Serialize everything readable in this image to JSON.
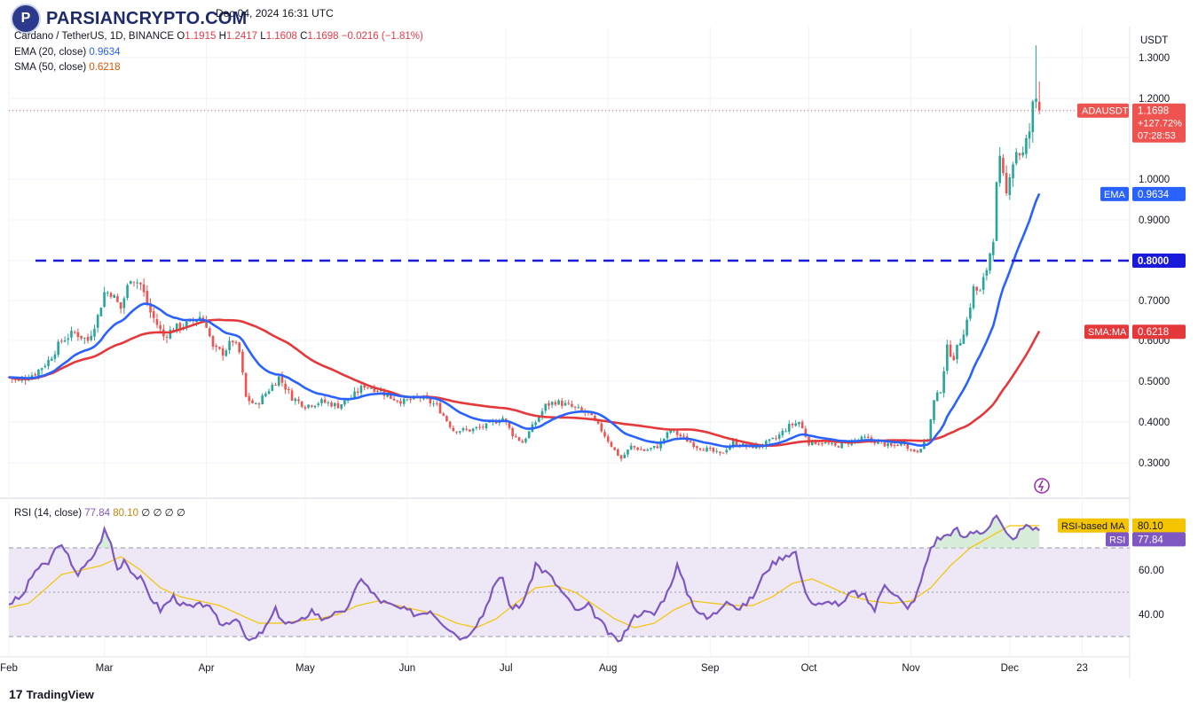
{
  "brand": {
    "logo_text": "PARSIANCRYPTO.COM",
    "logo_mark": "P",
    "footer_brand": "TradingView",
    "footer_mark": "17"
  },
  "header": {
    "published_line": "Dec 04, 2024 16:31 UTC",
    "symbol_line": "Cardano / TetherUS, 1D, BINANCE",
    "ohlc": {
      "o_label": "O",
      "o": "1.1915",
      "h_label": "H",
      "h": "1.2417",
      "l_label": "L",
      "l": "1.1608",
      "c_label": "C",
      "c": "1.1698",
      "change": "−0.0216 (−1.81%)"
    },
    "ema_label": "EMA (20, close)",
    "ema_value": "0.9634",
    "sma_label": "SMA (50, close)",
    "sma_value": "0.6218",
    "rsi_label": "RSI (14, close)",
    "rsi_value": "77.84",
    "rsi_ma_value": "80.10",
    "rsi_extra": "∅ ∅ ∅ ∅"
  },
  "colors": {
    "up": "#26a69a",
    "down": "#ef5350",
    "ema": "#2962ff",
    "sma": "#e5383b",
    "support": "#1a1adb",
    "rsi": "#7e57c2",
    "rsi_ma": "#f5c400",
    "rsi_band": "#ede7f6"
  },
  "chart_data": [
    {
      "type": "candlestick",
      "title": "Cardano / TetherUS, 1D, BINANCE",
      "currency": "USDT",
      "ylim": [
        0.22,
        1.35
      ],
      "y_ticks": [
        "0.3000",
        "0.4000",
        "0.5000",
        "0.6000",
        "0.7000",
        "0.8000",
        "0.9000",
        "1.0000",
        "1.2000",
        "1.3000"
      ],
      "x_ticks": [
        "Feb",
        "Mar",
        "Apr",
        "May",
        "Jun",
        "Jul",
        "Aug",
        "Sep",
        "Oct",
        "Nov",
        "Dec",
        "23"
      ],
      "x_tick_days": [
        0,
        29,
        60,
        90,
        121,
        151,
        182,
        213,
        243,
        274,
        304,
        326
      ],
      "date_range": [
        "2024-02-01",
        "2024-12-04"
      ],
      "price_anchors": [
        [
          0,
          0.51
        ],
        [
          3,
          0.5
        ],
        [
          8,
          0.52
        ],
        [
          12,
          0.55
        ],
        [
          16,
          0.6
        ],
        [
          20,
          0.62
        ],
        [
          24,
          0.6
        ],
        [
          27,
          0.66
        ],
        [
          29,
          0.72
        ],
        [
          31,
          0.72
        ],
        [
          34,
          0.68
        ],
        [
          37,
          0.76
        ],
        [
          40,
          0.74
        ],
        [
          43,
          0.67
        ],
        [
          47,
          0.61
        ],
        [
          50,
          0.63
        ],
        [
          54,
          0.64
        ],
        [
          58,
          0.66
        ],
        [
          60,
          0.64
        ],
        [
          62,
          0.58
        ],
        [
          65,
          0.57
        ],
        [
          68,
          0.6
        ],
        [
          70,
          0.57
        ],
        [
          72,
          0.46
        ],
        [
          75,
          0.44
        ],
        [
          78,
          0.47
        ],
        [
          82,
          0.51
        ],
        [
          86,
          0.46
        ],
        [
          90,
          0.44
        ],
        [
          95,
          0.45
        ],
        [
          100,
          0.44
        ],
        [
          104,
          0.46
        ],
        [
          108,
          0.49
        ],
        [
          112,
          0.48
        ],
        [
          116,
          0.46
        ],
        [
          120,
          0.45
        ],
        [
          125,
          0.46
        ],
        [
          130,
          0.44
        ],
        [
          135,
          0.38
        ],
        [
          140,
          0.38
        ],
        [
          145,
          0.39
        ],
        [
          150,
          0.41
        ],
        [
          153,
          0.37
        ],
        [
          156,
          0.35
        ],
        [
          160,
          0.4
        ],
        [
          163,
          0.44
        ],
        [
          166,
          0.45
        ],
        [
          170,
          0.44
        ],
        [
          173,
          0.43
        ],
        [
          176,
          0.42
        ],
        [
          180,
          0.38
        ],
        [
          184,
          0.33
        ],
        [
          186,
          0.31
        ],
        [
          189,
          0.34
        ],
        [
          193,
          0.33
        ],
        [
          197,
          0.34
        ],
        [
          201,
          0.38
        ],
        [
          205,
          0.36
        ],
        [
          209,
          0.34
        ],
        [
          213,
          0.33
        ],
        [
          216,
          0.32
        ],
        [
          220,
          0.35
        ],
        [
          224,
          0.34
        ],
        [
          228,
          0.34
        ],
        [
          233,
          0.36
        ],
        [
          237,
          0.39
        ],
        [
          240,
          0.4
        ],
        [
          243,
          0.35
        ],
        [
          247,
          0.35
        ],
        [
          251,
          0.34
        ],
        [
          255,
          0.35
        ],
        [
          260,
          0.36
        ],
        [
          264,
          0.35
        ],
        [
          268,
          0.34
        ],
        [
          272,
          0.35
        ],
        [
          274,
          0.33
        ],
        [
          276,
          0.33
        ],
        [
          279,
          0.36
        ],
        [
          281,
          0.45
        ],
        [
          283,
          0.48
        ],
        [
          285,
          0.58
        ],
        [
          287,
          0.56
        ],
        [
          289,
          0.6
        ],
        [
          291,
          0.65
        ],
        [
          293,
          0.73
        ],
        [
          295,
          0.72
        ],
        [
          297,
          0.78
        ],
        [
          299,
          0.86
        ],
        [
          300,
          0.98
        ],
        [
          301,
          1.04
        ],
        [
          303,
          0.96
        ],
        [
          304,
          1.02
        ],
        [
          306,
          1.07
        ],
        [
          308,
          1.06
        ],
        [
          310,
          1.12
        ],
        [
          311,
          1.18
        ],
        [
          312,
          1.2
        ],
        [
          313,
          1.17
        ]
      ],
      "key_prices": {
        "last": 1.1698,
        "high": 1.2417,
        "low": 1.1608,
        "ema20": 0.9634,
        "sma50": 0.6218,
        "support": 0.8
      },
      "support_level": 0.8,
      "labels": {
        "support": "0.8000",
        "ema_tag": "EMA",
        "ema": "0.9634",
        "sma_tag": "SMA:MA",
        "sma": "0.6218",
        "ticker": "ADAUSDT",
        "last": "1.1698",
        "pct": "+127.72%",
        "countdown": "07:28:53"
      }
    },
    {
      "type": "line",
      "title": "RSI (14, close)",
      "ylim": [
        24,
        84
      ],
      "y_ticks": [
        "40.00",
        "60.00"
      ],
      "bands": [
        30,
        50,
        70
      ],
      "rsi_anchors": [
        [
          0,
          45
        ],
        [
          4,
          48
        ],
        [
          8,
          60
        ],
        [
          12,
          63
        ],
        [
          15,
          72
        ],
        [
          18,
          66
        ],
        [
          21,
          58
        ],
        [
          24,
          63
        ],
        [
          27,
          70
        ],
        [
          29,
          78
        ],
        [
          31,
          72
        ],
        [
          33,
          60
        ],
        [
          35,
          65
        ],
        [
          38,
          58
        ],
        [
          40,
          56
        ],
        [
          43,
          48
        ],
        [
          46,
          42
        ],
        [
          50,
          48
        ],
        [
          53,
          44
        ],
        [
          56,
          43
        ],
        [
          60,
          45
        ],
        [
          62,
          40
        ],
        [
          65,
          35
        ],
        [
          68,
          38
        ],
        [
          70,
          38
        ],
        [
          72,
          28
        ],
        [
          75,
          29
        ],
        [
          78,
          34
        ],
        [
          81,
          42
        ],
        [
          84,
          36
        ],
        [
          88,
          36
        ],
        [
          92,
          42
        ],
        [
          95,
          38
        ],
        [
          98,
          40
        ],
        [
          101,
          40
        ],
        [
          104,
          46
        ],
        [
          107,
          57
        ],
        [
          110,
          50
        ],
        [
          113,
          46
        ],
        [
          116,
          44
        ],
        [
          120,
          42
        ],
        [
          124,
          40
        ],
        [
          128,
          42
        ],
        [
          132,
          36
        ],
        [
          135,
          32
        ],
        [
          138,
          29
        ],
        [
          141,
          34
        ],
        [
          144,
          40
        ],
        [
          147,
          52
        ],
        [
          150,
          57
        ],
        [
          152,
          44
        ],
        [
          155,
          43
        ],
        [
          158,
          52
        ],
        [
          160,
          63
        ],
        [
          162,
          60
        ],
        [
          164,
          58
        ],
        [
          167,
          52
        ],
        [
          170,
          46
        ],
        [
          173,
          41
        ],
        [
          176,
          44
        ],
        [
          180,
          36
        ],
        [
          183,
          30
        ],
        [
          186,
          28
        ],
        [
          189,
          38
        ],
        [
          192,
          41
        ],
        [
          196,
          40
        ],
        [
          200,
          50
        ],
        [
          203,
          62
        ],
        [
          206,
          50
        ],
        [
          209,
          42
        ],
        [
          212,
          38
        ],
        [
          215,
          41
        ],
        [
          218,
          47
        ],
        [
          222,
          42
        ],
        [
          226,
          48
        ],
        [
          230,
          60
        ],
        [
          233,
          64
        ],
        [
          236,
          67
        ],
        [
          239,
          68
        ],
        [
          241,
          54
        ],
        [
          244,
          45
        ],
        [
          247,
          44
        ],
        [
          250,
          46
        ],
        [
          253,
          44
        ],
        [
          256,
          50
        ],
        [
          260,
          48
        ],
        [
          263,
          42
        ],
        [
          266,
          54
        ],
        [
          270,
          48
        ],
        [
          273,
          42
        ],
        [
          276,
          50
        ],
        [
          278,
          60
        ],
        [
          280,
          70
        ],
        [
          282,
          74
        ],
        [
          284,
          75
        ],
        [
          286,
          77
        ],
        [
          288,
          78
        ],
        [
          290,
          74
        ],
        [
          292,
          77
        ],
        [
          294,
          78
        ],
        [
          296,
          77
        ],
        [
          298,
          80
        ],
        [
          300,
          84
        ],
        [
          302,
          78
        ],
        [
          304,
          74
        ],
        [
          306,
          76
        ],
        [
          308,
          78
        ],
        [
          310,
          80
        ],
        [
          312,
          78
        ],
        [
          313,
          77.84
        ]
      ],
      "rsi_ma_anchors": [
        [
          0,
          43
        ],
        [
          6,
          45
        ],
        [
          10,
          50
        ],
        [
          16,
          58
        ],
        [
          22,
          60
        ],
        [
          28,
          62
        ],
        [
          34,
          66
        ],
        [
          40,
          60
        ],
        [
          46,
          52
        ],
        [
          52,
          48
        ],
        [
          58,
          46
        ],
        [
          64,
          44
        ],
        [
          70,
          40
        ],
        [
          76,
          36
        ],
        [
          82,
          36
        ],
        [
          88,
          37
        ],
        [
          94,
          38
        ],
        [
          100,
          40
        ],
        [
          106,
          44
        ],
        [
          112,
          46
        ],
        [
          118,
          44
        ],
        [
          124,
          42
        ],
        [
          130,
          40
        ],
        [
          136,
          36
        ],
        [
          142,
          34
        ],
        [
          148,
          38
        ],
        [
          154,
          45
        ],
        [
          160,
          52
        ],
        [
          166,
          53
        ],
        [
          172,
          50
        ],
        [
          178,
          44
        ],
        [
          184,
          38
        ],
        [
          190,
          34
        ],
        [
          196,
          36
        ],
        [
          202,
          42
        ],
        [
          208,
          46
        ],
        [
          214,
          45
        ],
        [
          220,
          44
        ],
        [
          226,
          44
        ],
        [
          232,
          48
        ],
        [
          238,
          54
        ],
        [
          244,
          56
        ],
        [
          250,
          52
        ],
        [
          256,
          48
        ],
        [
          262,
          46
        ],
        [
          268,
          45
        ],
        [
          274,
          46
        ],
        [
          280,
          52
        ],
        [
          286,
          62
        ],
        [
          292,
          70
        ],
        [
          298,
          75
        ],
        [
          304,
          80
        ],
        [
          310,
          80
        ],
        [
          313,
          80.1
        ]
      ],
      "labels": {
        "rsi_ma_tag": "RSI-based MA",
        "rsi_ma": "80.10",
        "rsi_tag": "RSI",
        "rsi": "77.84"
      }
    }
  ]
}
